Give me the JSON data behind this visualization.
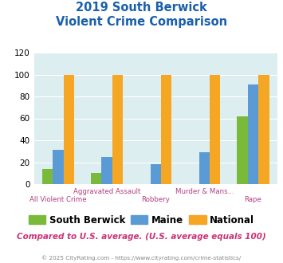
{
  "title_line1": "2019 South Berwick",
  "title_line2": "Violent Crime Comparison",
  "categories": [
    "All Violent Crime",
    "Aggravated Assault",
    "Robbery",
    "Murder & Mans...",
    "Rape"
  ],
  "cat_labels_row1": [
    "",
    "Aggravated Assault",
    "",
    "Murder & Mans...",
    ""
  ],
  "cat_labels_row2": [
    "All Violent Crime",
    "",
    "Robbery",
    "",
    "Rape"
  ],
  "south_berwick": [
    14,
    10,
    0,
    0,
    62
  ],
  "maine": [
    31,
    25,
    18,
    29,
    91
  ],
  "national": [
    100,
    100,
    100,
    100,
    100
  ],
  "colors": {
    "south_berwick": "#7aba3a",
    "maine": "#5b9bd5",
    "national": "#f5a623"
  },
  "ylim": [
    0,
    120
  ],
  "yticks": [
    0,
    20,
    40,
    60,
    80,
    100,
    120
  ],
  "background_color": "#ddeef0",
  "title_color": "#1a5fac",
  "xlabel_color": "#b04080",
  "legend_labels": [
    "South Berwick",
    "Maine",
    "National"
  ],
  "footer_text": "Compared to U.S. average. (U.S. average equals 100)",
  "copyright_text": "© 2025 CityRating.com - https://www.cityrating.com/crime-statistics/",
  "bar_width": 0.22
}
